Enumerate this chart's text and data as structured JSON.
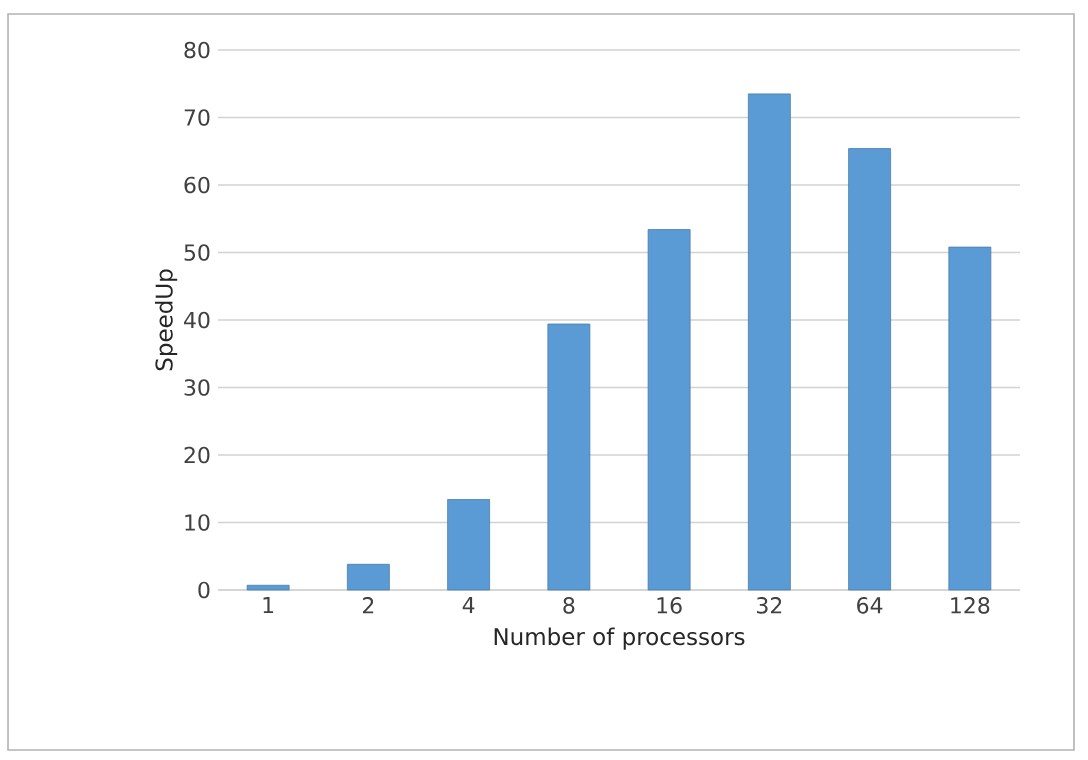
{
  "chart_data": {
    "type": "bar",
    "xlabel": "Number of processors",
    "ylabel": "SpeedUp",
    "categories": [
      "1",
      "2",
      "4",
      "8",
      "16",
      "32",
      "64",
      "128"
    ],
    "values": [
      0.7,
      3.8,
      13.4,
      39.4,
      53.4,
      73.5,
      65.4,
      50.8
    ],
    "color": "#5b9bd5",
    "ylim": [
      0,
      80
    ],
    "yticks": [
      0,
      10,
      20,
      30,
      40,
      50,
      60,
      70,
      80
    ],
    "grid": "y"
  }
}
